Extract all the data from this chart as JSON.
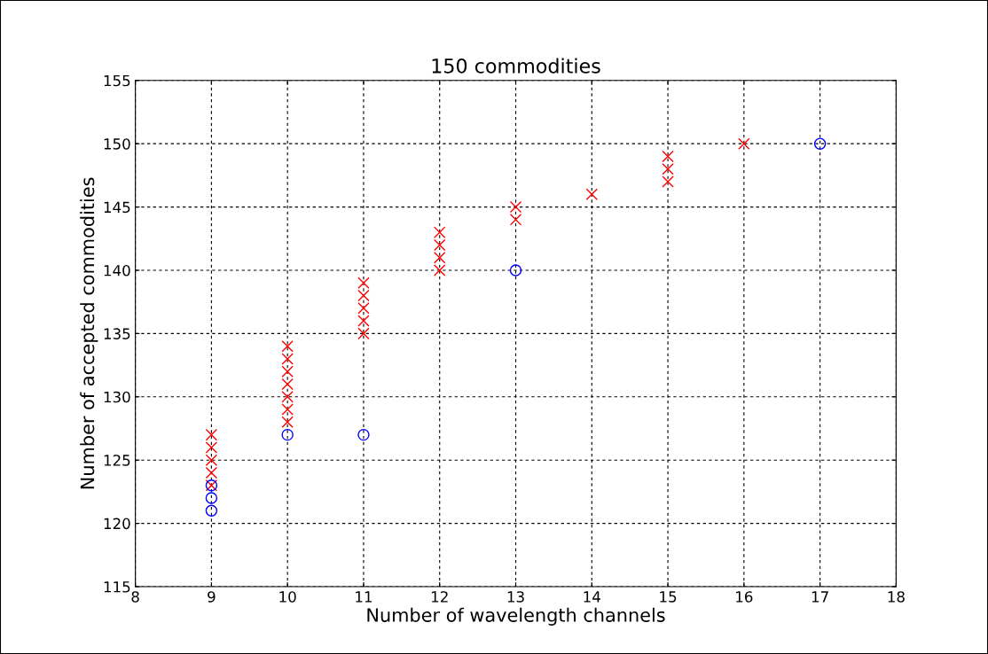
{
  "chart_data": {
    "type": "scatter",
    "title": "150 commodities",
    "xlabel": "Number of wavelength channels",
    "ylabel": "Number of accepted commodities",
    "xlim": [
      8,
      18
    ],
    "xticks": [
      8,
      9,
      10,
      11,
      12,
      13,
      14,
      15,
      16,
      17,
      18
    ],
    "ylim": [
      115,
      155
    ],
    "yticks": [
      115,
      120,
      125,
      130,
      135,
      140,
      145,
      150,
      155
    ],
    "grid": true,
    "legend": false,
    "series": [
      {
        "color": "#ff0000",
        "marker": "cross",
        "x": [
          9,
          9,
          9,
          9,
          9,
          10,
          10,
          10,
          10,
          10,
          10,
          10,
          11,
          11,
          11,
          11,
          11,
          12,
          12,
          12,
          12,
          13,
          13,
          14,
          15,
          15,
          15,
          16
        ],
        "values": [
          127,
          126,
          125,
          124,
          123,
          134,
          133,
          132,
          131,
          130,
          129,
          128,
          139,
          138,
          137,
          136,
          135,
          143,
          142,
          141,
          140,
          145,
          144,
          146,
          149,
          148,
          147,
          150
        ]
      },
      {
        "color": "#0000ff",
        "marker": "circle",
        "x": [
          9,
          9,
          9,
          10,
          11,
          13,
          17
        ],
        "values": [
          123,
          122,
          121,
          127,
          127,
          140,
          150
        ]
      }
    ]
  }
}
